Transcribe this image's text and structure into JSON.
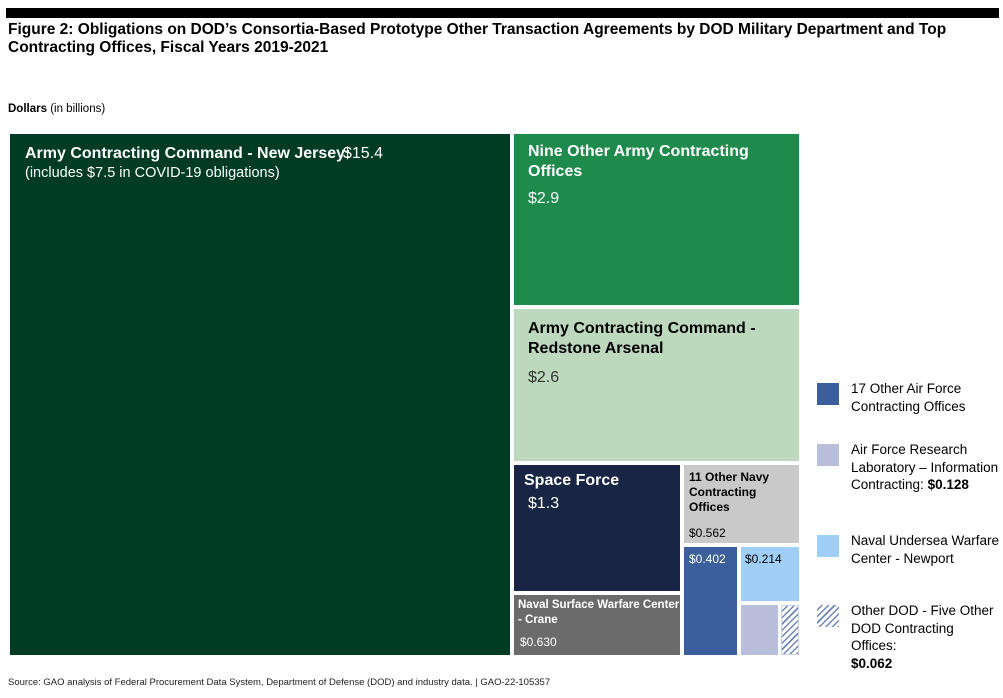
{
  "title": "Figure 2: Obligations on DOD’s Consortia-Based Prototype Other Transaction Agreements by DOD Military Department and Top Contracting Offices, Fiscal Years 2019-2021",
  "units_label": "Dollars",
  "units_note": "(in billions)",
  "source": "Source: GAO analysis of Federal Procurement Data System, Department of Defense (DOD) and industry data. | GAO-22-105357",
  "colors": {
    "army_nj": "#003c24",
    "army_other": "#1e8b4c",
    "army_redstone": "#bcd8bd",
    "space_force": "#192545",
    "navy_other": "#c9c9c9",
    "navy_crane": "#6b6b6b",
    "af_other": "#3a5f9c",
    "af_research": "#b9bedb",
    "naval_undersea": "#9fcff7",
    "other_dod": "hatch"
  },
  "chart_data": {
    "type": "treemap",
    "title": "Figure 2: Obligations on DOD’s Consortia-Based Prototype Other Transaction Agreements by DOD Military Department and Top Contracting Offices, Fiscal Years 2019-2021",
    "unit": "Dollars (in billions)",
    "items": [
      {
        "key": "army_nj",
        "name": "Army Contracting Command - New Jersey:",
        "value": 15.4,
        "value_label": "$15.4",
        "note": "(includes $7.5 in COVID-19 obligations)"
      },
      {
        "key": "army_other",
        "name": "Nine Other Army Contracting Offices",
        "value": 2.9,
        "value_label": "$2.9"
      },
      {
        "key": "army_redstone",
        "name": "Army Contracting Command - Redstone Arsenal",
        "value": 2.6,
        "value_label": "$2.6"
      },
      {
        "key": "space_force",
        "name": "Space Force",
        "value": 1.3,
        "value_label": "$1.3"
      },
      {
        "key": "navy_other",
        "name": "11 Other Navy Contracting Offices",
        "value": 0.562,
        "value_label": "$0.562"
      },
      {
        "key": "navy_crane",
        "name": "Naval Surface Warfare Center - Crane",
        "value": 0.63,
        "value_label": "$0.630"
      },
      {
        "key": "af_other",
        "name": "17 Other Air Force Contracting Offices",
        "value": 0.402,
        "value_label": "$0.402"
      },
      {
        "key": "naval_undersea",
        "name": "Naval Undersea Warfare Center - Newport",
        "value": 0.214,
        "value_label": "$0.214"
      },
      {
        "key": "af_research",
        "name": "Air Force Research Laboratory – Information Contracting:",
        "value": 0.128,
        "value_label": "$0.128"
      },
      {
        "key": "other_dod",
        "name": "Other DOD - Five Other DOD Contracting Offices:",
        "value": 0.062,
        "value_label": "$0.062"
      }
    ],
    "legend": [
      {
        "key": "af_other",
        "text": "17 Other Air Force Contracting Offices"
      },
      {
        "key": "af_research",
        "text": "Air Force Research Laboratory – Information Contracting:",
        "value_label": "$0.128"
      },
      {
        "key": "naval_undersea",
        "text": "Naval Undersea Warfare Center - Newport"
      },
      {
        "key": "other_dod",
        "text": "Other DOD - Five Other DOD Contracting Offices:",
        "value_label": "$0.062"
      }
    ]
  }
}
